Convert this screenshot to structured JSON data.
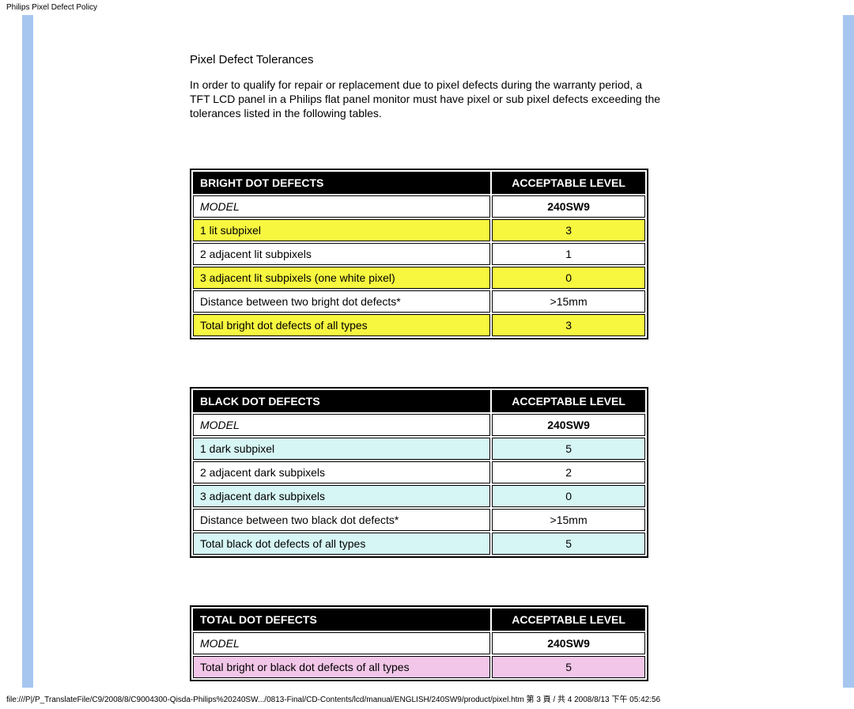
{
  "page_header": "Philips Pixel Defect Policy",
  "section_title": "Pixel Defect Tolerances",
  "section_para": "In order to qualify for repair or replacement due to pixel defects during the warranty period, a TFT LCD panel in a Philips flat panel monitor must have pixel or sub pixel defects exceeding the tolerances listed in the following tables.",
  "tables": [
    {
      "header_left": "BRIGHT DOT DEFECTS",
      "header_right": "ACCEPTABLE LEVEL",
      "model_label": "MODEL",
      "model_value": "240SW9",
      "row_color": "#f7f740",
      "rows": [
        {
          "label": "1 lit subpixel",
          "value": "3",
          "hl": true
        },
        {
          "label": "2 adjacent lit subpixels",
          "value": "1",
          "hl": false
        },
        {
          "label": "3 adjacent lit subpixels (one white pixel)",
          "value": "0",
          "hl": true
        },
        {
          "label": "Distance between two bright dot defects*",
          "value": ">15mm",
          "hl": false
        },
        {
          "label": "Total bright dot defects of all types",
          "value": "3",
          "hl": true
        }
      ]
    },
    {
      "header_left": "BLACK DOT DEFECTS",
      "header_right": "ACCEPTABLE LEVEL",
      "model_label": "MODEL",
      "model_value": "240SW9",
      "row_color": "#d6f5f5",
      "rows": [
        {
          "label": "1 dark subpixel",
          "value": "5",
          "hl": true
        },
        {
          "label": "2 adjacent dark subpixels",
          "value": "2",
          "hl": false
        },
        {
          "label": "3 adjacent dark subpixels",
          "value": "0",
          "hl": true
        },
        {
          "label": "Distance between two black dot defects*",
          "value": ">15mm",
          "hl": false
        },
        {
          "label": "Total black dot defects of all types",
          "value": "5",
          "hl": true
        }
      ]
    },
    {
      "header_left": "TOTAL DOT DEFECTS",
      "header_right": "ACCEPTABLE LEVEL",
      "model_label": "MODEL",
      "model_value": "240SW9",
      "row_color": "#f2c6e8",
      "rows": [
        {
          "label": "Total bright or black dot defects of all types",
          "value": "5",
          "hl": true
        }
      ]
    }
  ],
  "footer": "file:///P|/P_TranslateFile/C9/2008/8/C9004300-Qisda-Philips%20240SW.../0813-Final/CD-Contents/lcd/manual/ENGLISH/240SW9/product/pixel.htm 第 3 頁 / 共 4 2008/8/13 下午 05:42:56",
  "colors": {
    "blue_bar": "#a6c6f0",
    "header_bg": "#000000",
    "header_fg": "#ffffff"
  }
}
